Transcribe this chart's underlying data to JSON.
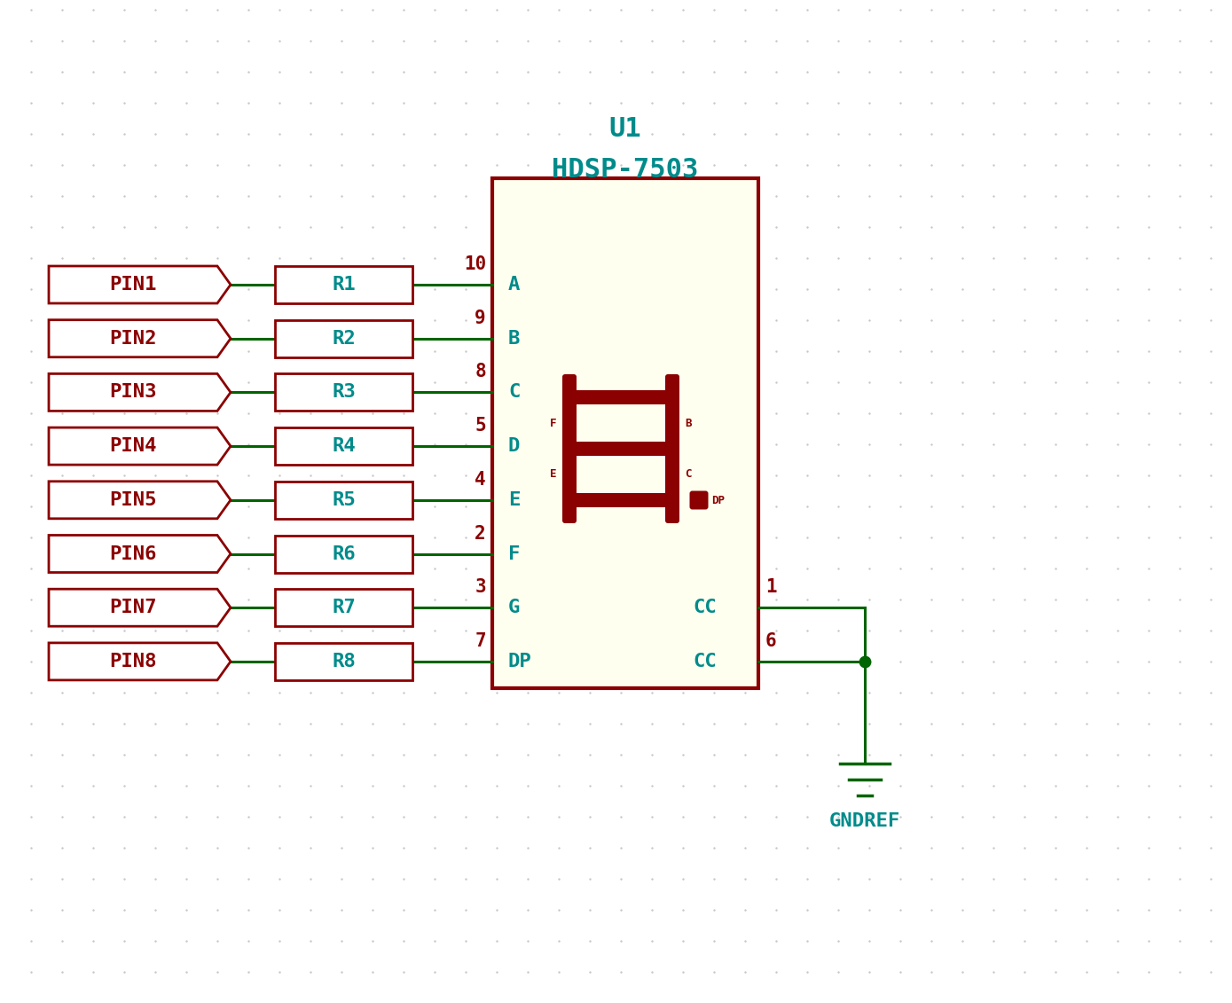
{
  "bg_color": "#ffffff",
  "dark_red": "#8B0000",
  "teal": "#008B8B",
  "green_wire": "#006400",
  "yellow_bg": "#FFFFF0",
  "pin_labels": [
    "PIN1",
    "PIN2",
    "PIN3",
    "PIN4",
    "PIN5",
    "PIN6",
    "PIN7",
    "PIN8"
  ],
  "res_labels": [
    "R1",
    "R2",
    "R3",
    "R4",
    "R5",
    "R6",
    "R7",
    "R8"
  ],
  "seg_labels": [
    "A",
    "B",
    "C",
    "D",
    "E",
    "F",
    "G",
    "DP"
  ],
  "pin_numbers": [
    "10",
    "9",
    "8",
    "5",
    "4",
    "2",
    "3",
    "7"
  ],
  "cc_labels": [
    "CC",
    "CC"
  ],
  "cc_pins": [
    "1",
    "6"
  ],
  "u1_label": "U1",
  "part_label": "HDSP-7503",
  "gnd_label": "GNDREF",
  "title_fontsize": 22,
  "label_fontsize": 16,
  "pin_num_fontsize": 15,
  "seg_inner_fontsize": 9
}
